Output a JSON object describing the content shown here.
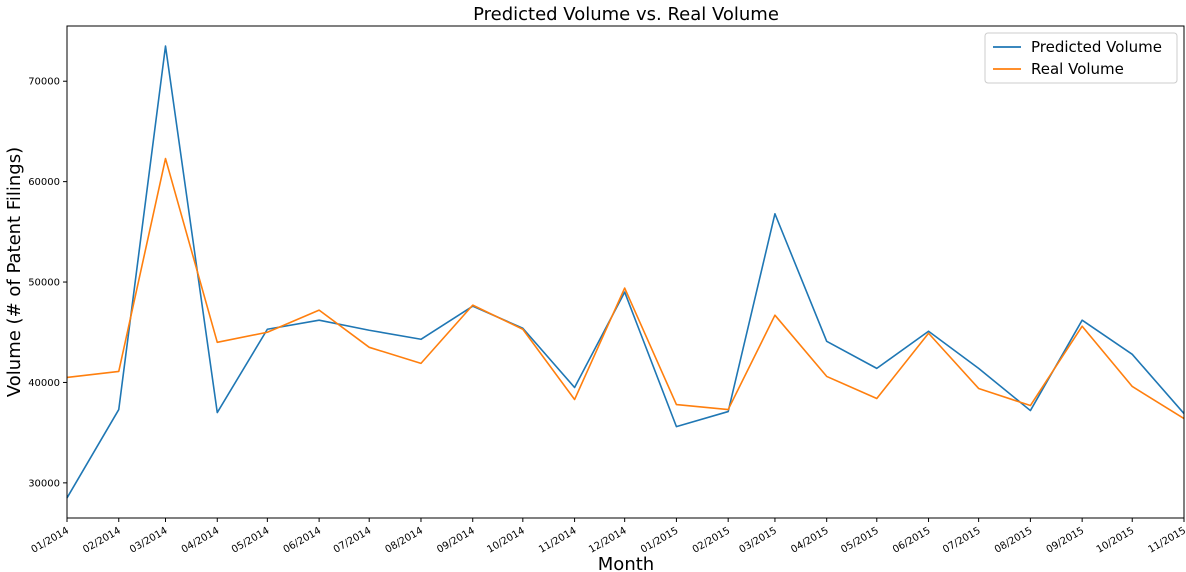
{
  "chart_data": {
    "type": "line",
    "title": "Predicted Volume vs. Real Volume",
    "xlabel": "Month",
    "ylabel": "Volume (# of Patent Filings)",
    "ylim": [
      26500,
      75500
    ],
    "y_ticks": [
      30000,
      40000,
      50000,
      60000,
      70000
    ],
    "y_tick_labels": [
      "30000",
      "40000",
      "50000",
      "60000",
      "70000"
    ],
    "x": [
      "01/2014",
      "02/2014",
      "03/2014",
      "04/2014",
      "05/2014",
      "06/2014",
      "07/2014",
      "08/2014",
      "09/2014",
      "10/2014",
      "11/2014",
      "12/2014",
      "01/2015",
      "02/2015",
      "03/2015",
      "04/2015",
      "05/2015",
      "06/2015",
      "07/2015",
      "08/2015",
      "09/2015",
      "10/2015",
      "11/2015"
    ],
    "x_day_offsets": [
      0,
      31,
      59,
      90,
      120,
      151,
      181,
      212,
      243,
      273,
      304,
      334,
      365,
      396,
      424,
      455,
      485,
      516,
      546,
      577,
      608,
      638,
      669
    ],
    "series": [
      {
        "name": "Predicted Volume",
        "color": "#1f77b4",
        "values": [
          28500,
          37300,
          73500,
          37000,
          45300,
          46200,
          45200,
          44300,
          47600,
          45400,
          39500,
          49000,
          35600,
          37100,
          56800,
          44100,
          41400,
          45100,
          41400,
          37200,
          46200,
          42800,
          36900
        ]
      },
      {
        "name": "Real Volume",
        "color": "#ff7f0e",
        "values": [
          40500,
          41100,
          62300,
          44000,
          45000,
          47200,
          43500,
          41900,
          47700,
          45300,
          38300,
          49400,
          37800,
          37300,
          46700,
          40600,
          38400,
          44900,
          39400,
          37700,
          45600,
          39600,
          36400
        ]
      }
    ],
    "grid": false,
    "legend": "top-right"
  }
}
